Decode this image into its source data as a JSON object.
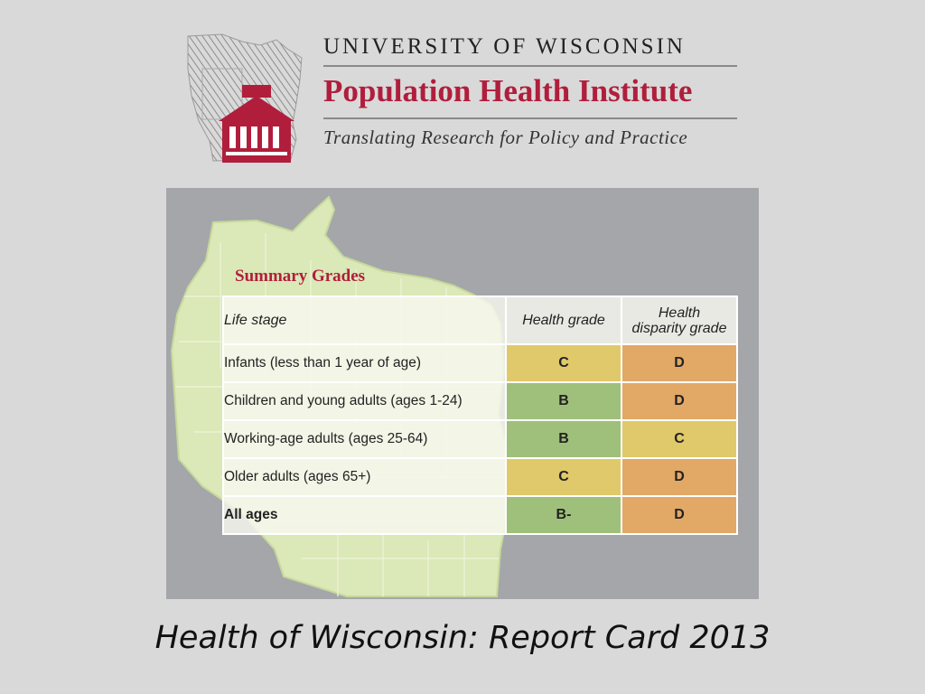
{
  "logo": {
    "university": "UNIVERSITY OF WISCONSIN",
    "institute": "Population Health Institute",
    "tagline": "Translating Research for Policy and Practice",
    "brand_color": "#b01e3c",
    "icon": "wisconsin-capitol-icon"
  },
  "summary": {
    "title": "Summary Grades",
    "headers": [
      "Life stage",
      "Health grade",
      "Health",
      "disparity grade"
    ],
    "rows": [
      {
        "stage": "Infants (less than 1 year of age)",
        "health": "C",
        "disparity": "D"
      },
      {
        "stage": "Children and young adults (ages 1-24)",
        "health": "B",
        "disparity": "D"
      },
      {
        "stage": "Working-age adults (ages 25-64)",
        "health": "B",
        "disparity": "C"
      },
      {
        "stage": "Older adults (ages 65+)",
        "health": "C",
        "disparity": "D"
      },
      {
        "stage": "All ages",
        "health": "B-",
        "disparity": "D"
      }
    ],
    "grade_colors": {
      "B": "#9fc07a",
      "C": "#e0c96a",
      "D": "#e2a866"
    }
  },
  "caption": "Health of Wisconsin: Report Card 2013"
}
